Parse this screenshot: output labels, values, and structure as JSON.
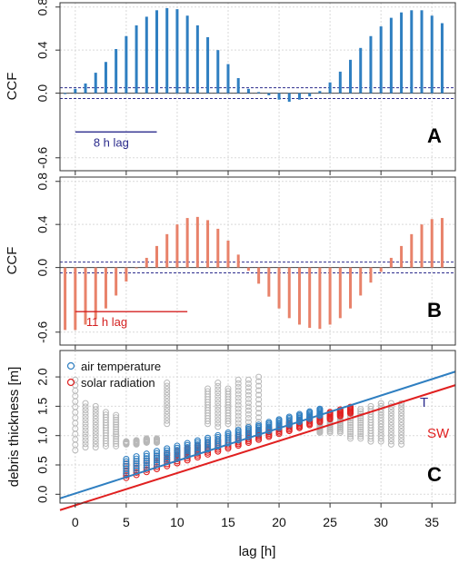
{
  "x_axis": {
    "label": "lag [h]",
    "ticks": [
      0,
      5,
      10,
      15,
      20,
      25,
      30,
      35
    ],
    "range": [
      -1.5,
      37.3
    ]
  },
  "colors": {
    "air": "#2f7fc1",
    "solar": "#e8826a",
    "solar_scatter": "#e02020",
    "line_A_annot": "#2b2b8c",
    "line_B_annot": "#d42020",
    "grey": "#b8b8b8",
    "T_line": "#2f7fc1",
    "SW_line": "#e02020",
    "T_label": "#2b2b8c",
    "SW_label": "#e02020"
  },
  "chart_data": [
    {
      "panel": "A",
      "type": "bar",
      "ylabel": "CCF",
      "ylim": [
        -0.72,
        0.84
      ],
      "yticks": [
        "0.8",
        "0.4",
        "0.0",
        "-0.6"
      ],
      "ytick_values": [
        0.8,
        0.4,
        0.0,
        -0.6
      ],
      "grid": true,
      "confidence_band": [
        -0.05,
        0.05
      ],
      "annotation": "8 h lag",
      "annotation_span": [
        0,
        8
      ],
      "x": [
        -1,
        0,
        1,
        2,
        3,
        4,
        5,
        6,
        7,
        8,
        9,
        10,
        11,
        12,
        13,
        14,
        15,
        16,
        17,
        18,
        19,
        20,
        21,
        22,
        23,
        24,
        25,
        26,
        27,
        28,
        29,
        30,
        31,
        32,
        33,
        34,
        35,
        36
      ],
      "values": [
        0.0,
        0.04,
        0.09,
        0.19,
        0.29,
        0.41,
        0.53,
        0.63,
        0.71,
        0.77,
        0.79,
        0.78,
        0.72,
        0.63,
        0.52,
        0.4,
        0.27,
        0.14,
        0.04,
        0.01,
        -0.02,
        -0.06,
        -0.08,
        -0.06,
        -0.03,
        0.02,
        0.1,
        0.2,
        0.31,
        0.42,
        0.53,
        0.62,
        0.7,
        0.75,
        0.77,
        0.77,
        0.72,
        0.65
      ]
    },
    {
      "panel": "B",
      "type": "bar",
      "ylabel": "CCF",
      "ylim": [
        -0.72,
        0.84
      ],
      "yticks": [
        "0.8",
        "0.4",
        "0.0",
        "-0.6"
      ],
      "ytick_values": [
        0.8,
        0.4,
        0.0,
        -0.6
      ],
      "grid": true,
      "confidence_band": [
        -0.05,
        0.05
      ],
      "annotation": "11 h lag",
      "annotation_span": [
        0,
        11
      ],
      "x": [
        -1,
        0,
        1,
        2,
        3,
        4,
        5,
        6,
        7,
        8,
        9,
        10,
        11,
        12,
        13,
        14,
        15,
        16,
        17,
        18,
        19,
        20,
        21,
        22,
        23,
        24,
        25,
        26,
        27,
        28,
        29,
        30,
        31,
        32,
        33,
        34,
        35,
        36
      ],
      "values": [
        -0.58,
        -0.58,
        -0.53,
        -0.48,
        -0.38,
        -0.26,
        -0.13,
        0.0,
        0.09,
        0.2,
        0.31,
        0.4,
        0.46,
        0.47,
        0.44,
        0.36,
        0.25,
        0.12,
        -0.03,
        -0.15,
        -0.27,
        -0.38,
        -0.47,
        -0.53,
        -0.56,
        -0.57,
        -0.53,
        -0.47,
        -0.38,
        -0.26,
        -0.14,
        -0.04,
        0.09,
        0.2,
        0.31,
        0.4,
        0.45,
        0.46
      ]
    },
    {
      "panel": "C",
      "type": "scatter",
      "ylabel": "debris thickness [m]",
      "ylim": [
        -0.15,
        2.45
      ],
      "yticks": [
        "0.0",
        "0.5",
        "1.0",
        "1.5",
        "2.0"
      ],
      "ytick_values": [
        0.0,
        0.5,
        1.0,
        1.5,
        2.0
      ],
      "grid": true,
      "legend_position": "top-left",
      "series": [
        {
          "name": "air temperature",
          "color_key": "air"
        },
        {
          "name": "solar radiation",
          "color_key": "solar_scatter"
        }
      ],
      "fit_lines": [
        {
          "label": "T",
          "x": [
            -1.5,
            37.3
          ],
          "y": [
            -0.07,
            2.09
          ]
        },
        {
          "label": "SW",
          "x": [
            -1.5,
            37.3
          ],
          "y": [
            -0.27,
            1.86
          ]
        }
      ],
      "ranges_air": {
        "x_from": 5,
        "x_to": 24,
        "lo_start": 0.35,
        "lo_slope": 0.052,
        "hi_start": 0.6,
        "hi_slope": 0.045
      },
      "ranges_solar": {
        "x_from": 5,
        "x_to": 27,
        "lo_start": 0.28,
        "lo_slope": 0.05,
        "hi_start": 0.52,
        "hi_slope": 0.044
      },
      "grey_columns": [
        {
          "x": 0,
          "lo": 0.75,
          "hi": 1.95
        },
        {
          "x": 1,
          "lo": 0.8,
          "hi": 1.55
        },
        {
          "x": 2,
          "lo": 0.8,
          "hi": 1.5
        },
        {
          "x": 3,
          "lo": 0.82,
          "hi": 1.4
        },
        {
          "x": 4,
          "lo": 0.82,
          "hi": 1.35
        },
        {
          "x": 5,
          "lo": 0.85,
          "hi": 0.9
        },
        {
          "x": 6,
          "lo": 0.85,
          "hi": 0.92
        },
        {
          "x": 7,
          "lo": 0.88,
          "hi": 0.95
        },
        {
          "x": 8,
          "lo": 0.88,
          "hi": 0.95
        },
        {
          "x": 9,
          "lo": 1.2,
          "hi": 1.9
        },
        {
          "x": 13,
          "lo": 1.2,
          "hi": 1.8
        },
        {
          "x": 14,
          "lo": 1.15,
          "hi": 1.9
        },
        {
          "x": 15,
          "lo": 1.2,
          "hi": 1.8
        },
        {
          "x": 16,
          "lo": 1.15,
          "hi": 1.95
        },
        {
          "x": 17,
          "lo": 1.1,
          "hi": 1.95
        },
        {
          "x": 18,
          "lo": 1.0,
          "hi": 2.0
        },
        {
          "x": 24,
          "lo": 1.05,
          "hi": 1.25
        },
        {
          "x": 25,
          "lo": 1.05,
          "hi": 1.4
        },
        {
          "x": 26,
          "lo": 1.05,
          "hi": 1.4
        },
        {
          "x": 27,
          "lo": 0.95,
          "hi": 1.45
        },
        {
          "x": 28,
          "lo": 0.95,
          "hi": 1.45
        },
        {
          "x": 29,
          "lo": 0.9,
          "hi": 1.5
        },
        {
          "x": 30,
          "lo": 0.9,
          "hi": 1.55
        },
        {
          "x": 31,
          "lo": 0.85,
          "hi": 1.55
        },
        {
          "x": 32,
          "lo": 0.85,
          "hi": 1.55
        }
      ],
      "line_labels": [
        "T",
        "SW"
      ]
    }
  ]
}
